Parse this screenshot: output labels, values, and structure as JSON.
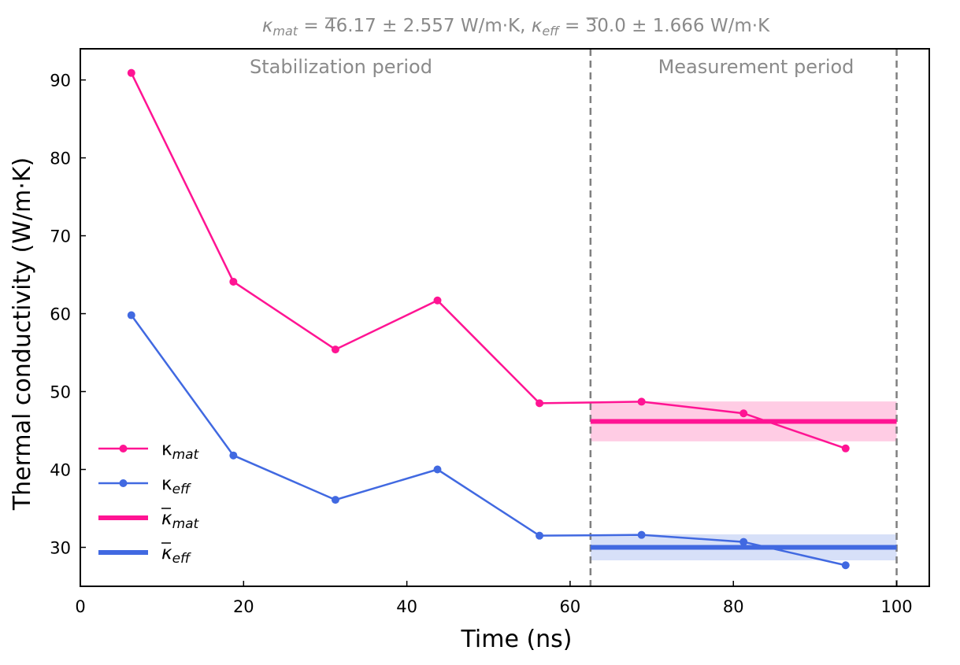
{
  "chart_data": {
    "type": "line",
    "title_parts": {
      "mat_symbol": "κ",
      "mat_sub": "mat",
      "mat_text": " = 46.17 ± 2.557 W/m·K, ",
      "eff_symbol": "κ",
      "eff_sub": "eff",
      "eff_text": " = 30.0 ± 1.666 W/m·K"
    },
    "xlabel": "Time (ns)",
    "ylabel": "Thermal conductivity (W/m·K)",
    "xlim": [
      0,
      104
    ],
    "ylim": [
      25,
      94
    ],
    "xticks": [
      0,
      20,
      40,
      60,
      80,
      100
    ],
    "yticks": [
      30,
      40,
      50,
      60,
      70,
      80,
      90
    ],
    "grid": false,
    "legend_position": "lower-left",
    "annotations": {
      "stabilization": "Stabilization period",
      "measurement": "Measurement period"
    },
    "measurement_window": [
      62.5,
      100
    ],
    "series": [
      {
        "name": "κmat",
        "symbol": "κ",
        "sub": "mat",
        "color": "#ff1493",
        "x": [
          6.25,
          18.75,
          31.25,
          43.75,
          56.25,
          68.75,
          81.25,
          93.75
        ],
        "values": [
          90.9,
          64.1,
          55.4,
          61.7,
          48.5,
          48.7,
          47.2,
          42.7
        ]
      },
      {
        "name": "κeff",
        "symbol": "κ",
        "sub": "eff",
        "color": "#4169e1",
        "x": [
          6.25,
          18.75,
          31.25,
          43.75,
          56.25,
          68.75,
          81.25,
          93.75
        ],
        "values": [
          59.8,
          41.8,
          36.1,
          40.0,
          31.5,
          31.6,
          30.7,
          27.7
        ]
      }
    ],
    "means": [
      {
        "name": "κ̄mat",
        "symbol": "κ",
        "sub": "mat",
        "color": "#ff1493",
        "band_color": "#ffb6d9",
        "mean": 46.17,
        "std": 2.557
      },
      {
        "name": "κ̄eff",
        "symbol": "κ",
        "sub": "eff",
        "color": "#4169e1",
        "band_color": "#c6d3f5",
        "mean": 30.0,
        "std": 1.666
      }
    ]
  }
}
